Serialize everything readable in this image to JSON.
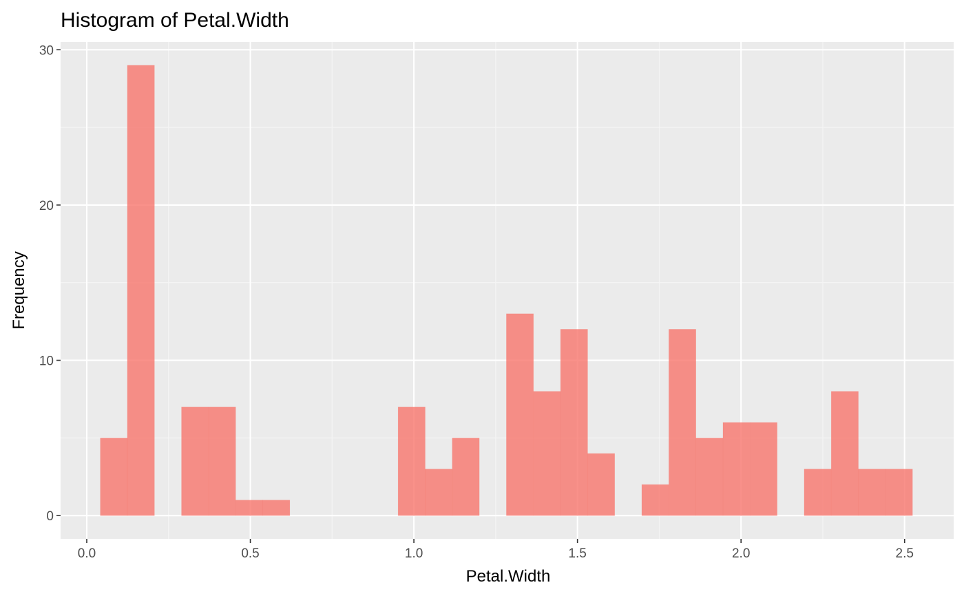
{
  "chart_data": {
    "type": "bar",
    "title": "Histogram of Petal.Width",
    "xlabel": "Petal.Width",
    "ylabel": "Frequency",
    "xlim": [
      -0.08,
      2.65
    ],
    "ylim": [
      -1.5,
      30.5
    ],
    "x_ticks": [
      0.0,
      0.5,
      1.0,
      1.5,
      2.0,
      2.5
    ],
    "x_tick_labels": [
      "0.0",
      "0.5",
      "1.0",
      "1.5",
      "2.0",
      "2.5"
    ],
    "y_ticks": [
      0,
      10,
      20,
      30
    ],
    "y_tick_labels": [
      "0",
      "10",
      "20",
      "30"
    ],
    "bin_width": 0.0828,
    "bin_centers": [
      0.0828,
      0.1655,
      0.2483,
      0.331,
      0.4138,
      0.4966,
      0.5793,
      0.6621,
      0.7448,
      0.8276,
      0.9103,
      0.9931,
      1.0759,
      1.1586,
      1.2414,
      1.3241,
      1.4069,
      1.4897,
      1.5724,
      1.6552,
      1.7379,
      1.8207,
      1.9034,
      1.9862,
      2.069,
      2.1517,
      2.2345,
      2.3172,
      2.4,
      2.4828
    ],
    "values": [
      5,
      29,
      0,
      7,
      7,
      1,
      1,
      0,
      0,
      0,
      0,
      7,
      3,
      5,
      0,
      13,
      8,
      12,
      4,
      0,
      2,
      12,
      5,
      6,
      6,
      0,
      3,
      8,
      3,
      3
    ],
    "colors": {
      "bar_fill": "#F8766D",
      "bar_opacity": 0.8,
      "panel_background": "#EBEBEB",
      "grid_major": "#FFFFFF",
      "grid_minor": "#F5F5F5"
    },
    "grid": true,
    "legend": "none"
  }
}
